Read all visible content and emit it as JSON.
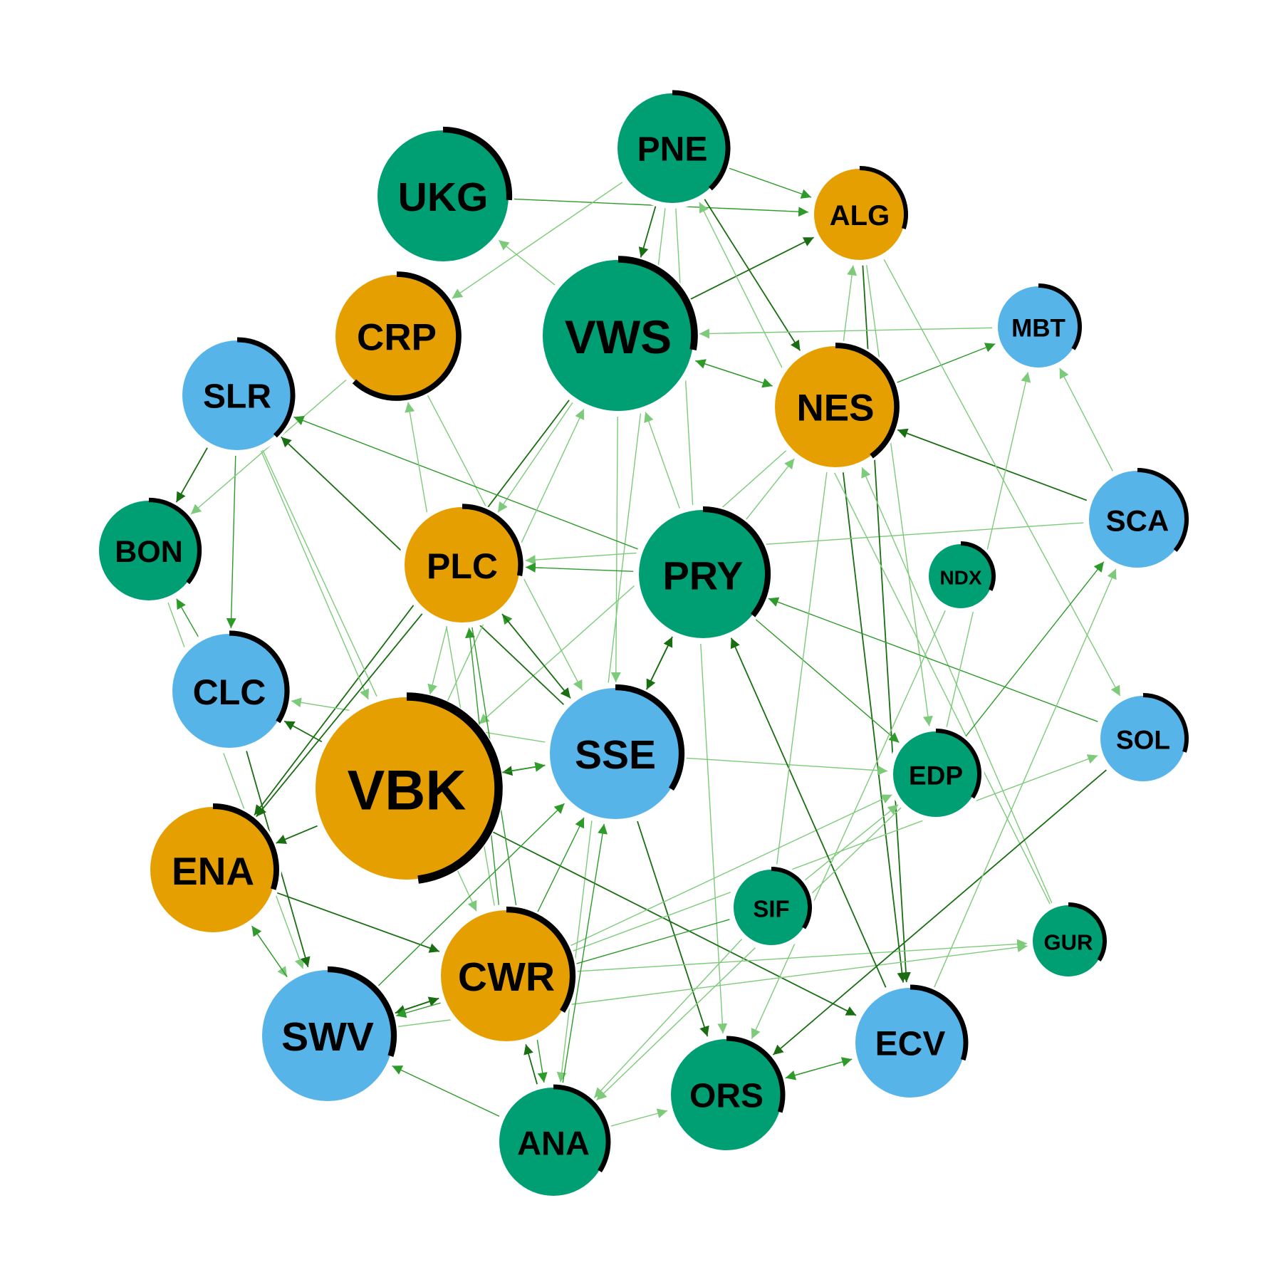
{
  "colors": {
    "orange": "#E69F00",
    "green": "#009E73",
    "blue": "#56B4E9",
    "ring": "#000000",
    "edge_dark": "#1a6e12",
    "edge_mid": "#2e9a2a",
    "edge_light": "#7dcb7a"
  },
  "nodes": [
    {
      "id": "UKG",
      "color": "green",
      "ring": 0.26
    },
    {
      "id": "PNE",
      "color": "green",
      "ring": 0.38
    },
    {
      "id": "ALG",
      "color": "orange",
      "ring": 0.3
    },
    {
      "id": "CRP",
      "color": "orange",
      "ring": 0.62
    },
    {
      "id": "VWS",
      "color": "green",
      "ring": 0.28
    },
    {
      "id": "MBT",
      "color": "blue",
      "ring": 0.34
    },
    {
      "id": "SLR",
      "color": "blue",
      "ring": 0.38
    },
    {
      "id": "NES",
      "color": "orange",
      "ring": 0.4
    },
    {
      "id": "BON",
      "color": "green",
      "ring": 0.36
    },
    {
      "id": "PLC",
      "color": "orange",
      "ring": 0.28
    },
    {
      "id": "PRY",
      "color": "green",
      "ring": 0.36
    },
    {
      "id": "SCA",
      "color": "blue",
      "ring": 0.36
    },
    {
      "id": "NDX",
      "color": "green",
      "ring": 0.32
    },
    {
      "id": "CLC",
      "color": "blue",
      "ring": 0.34
    },
    {
      "id": "VBK",
      "color": "orange",
      "ring": 0.48
    },
    {
      "id": "SSE",
      "color": "blue",
      "ring": 0.34
    },
    {
      "id": "EDP",
      "color": "green",
      "ring": 0.34
    },
    {
      "id": "SOL",
      "color": "blue",
      "ring": 0.3
    },
    {
      "id": "ENA",
      "color": "orange",
      "ring": 0.3
    },
    {
      "id": "SIF",
      "color": "green",
      "ring": 0.34
    },
    {
      "id": "CWR",
      "color": "orange",
      "ring": 0.34
    },
    {
      "id": "GUR",
      "color": "green",
      "ring": 0.34
    },
    {
      "id": "SWV",
      "color": "blue",
      "ring": 0.3
    },
    {
      "id": "ECV",
      "color": "blue",
      "ring": 0.3
    },
    {
      "id": "ORS",
      "color": "green",
      "ring": 0.3
    },
    {
      "id": "ANA",
      "color": "green",
      "ring": 0.34
    }
  ],
  "edges": [
    {
      "from": "UKG",
      "to": "ALG",
      "shade": "mid"
    },
    {
      "from": "PNE",
      "to": "VWS",
      "shade": "dark"
    },
    {
      "from": "PNE",
      "to": "ALG",
      "shade": "mid"
    },
    {
      "from": "PNE",
      "to": "CRP",
      "shade": "light"
    },
    {
      "from": "PNE",
      "to": "NES",
      "shade": "dark"
    },
    {
      "from": "PNE",
      "to": "ORS",
      "shade": "light"
    },
    {
      "from": "PNE",
      "to": "ANA",
      "shade": "light"
    },
    {
      "from": "VWS",
      "to": "ALG",
      "shade": "dark"
    },
    {
      "from": "NES",
      "to": "VWS",
      "shade": "mid"
    },
    {
      "from": "VWS",
      "to": "NES",
      "shade": "mid"
    },
    {
      "from": "VWS",
      "to": "PLC",
      "shade": "light"
    },
    {
      "from": "VWS",
      "to": "SSE",
      "shade": "light"
    },
    {
      "from": "VWS",
      "to": "UKG",
      "shade": "light"
    },
    {
      "from": "VWS",
      "to": "ENA",
      "shade": "dark"
    },
    {
      "from": "NES",
      "to": "MBT",
      "shade": "mid"
    },
    {
      "from": "NES",
      "to": "ECV",
      "shade": "dark"
    },
    {
      "from": "NES",
      "to": "VBK",
      "shade": "light"
    },
    {
      "from": "SCA",
      "to": "NES",
      "shade": "dark"
    },
    {
      "from": "SCA",
      "to": "MBT",
      "shade": "light"
    },
    {
      "from": "SCA",
      "to": "PLC",
      "shade": "light"
    },
    {
      "from": "ALG",
      "to": "EDP",
      "shade": "light"
    },
    {
      "from": "ALG",
      "to": "SOL",
      "shade": "light"
    },
    {
      "from": "ALG",
      "to": "ECV",
      "shade": "dark"
    },
    {
      "from": "MBT",
      "to": "VWS",
      "shade": "light"
    },
    {
      "from": "GUR",
      "to": "PNE",
      "shade": "light"
    },
    {
      "from": "GUR",
      "to": "NES",
      "shade": "light"
    },
    {
      "from": "SLR",
      "to": "BON",
      "shade": "dark"
    },
    {
      "from": "SLR",
      "to": "CLC",
      "shade": "mid"
    },
    {
      "from": "SLR",
      "to": "CWR",
      "shade": "light"
    },
    {
      "from": "SLR",
      "to": "VBK",
      "shade": "light"
    },
    {
      "from": "CRP",
      "to": "BON",
      "shade": "light"
    },
    {
      "from": "CRP",
      "to": "SSE",
      "shade": "light"
    },
    {
      "from": "PRY",
      "to": "SLR",
      "shade": "mid"
    },
    {
      "from": "PRY",
      "to": "PLC",
      "shade": "mid"
    },
    {
      "from": "PRY",
      "to": "EDP",
      "shade": "mid"
    },
    {
      "from": "PRY",
      "to": "NES",
      "shade": "light"
    },
    {
      "from": "PRY",
      "to": "SSE",
      "shade": "dark"
    },
    {
      "from": "PRY",
      "to": "VWS",
      "shade": "light"
    },
    {
      "from": "SSE",
      "to": "PRY",
      "shade": "dark"
    },
    {
      "from": "SSE",
      "to": "PLC",
      "shade": "mid"
    },
    {
      "from": "SSE",
      "to": "SLR",
      "shade": "dark"
    },
    {
      "from": "SSE",
      "to": "VBK",
      "shade": "dark"
    },
    {
      "from": "SSE",
      "to": "EDP",
      "shade": "light"
    },
    {
      "from": "SSE",
      "to": "ORS",
      "shade": "dark"
    },
    {
      "from": "SSE",
      "to": "CLC",
      "shade": "light"
    },
    {
      "from": "VBK",
      "to": "CLC",
      "shade": "dark"
    },
    {
      "from": "VBK",
      "to": "SSE",
      "shade": "mid"
    },
    {
      "from": "VBK",
      "to": "ENA",
      "shade": "dark"
    },
    {
      "from": "VBK",
      "to": "ECV",
      "shade": "dark"
    },
    {
      "from": "VBK",
      "to": "VWS",
      "shade": "light"
    },
    {
      "from": "BON",
      "to": "SWV",
      "shade": "light"
    },
    {
      "from": "CLC",
      "to": "BON",
      "shade": "mid"
    },
    {
      "from": "CLC",
      "to": "SWV",
      "shade": "dark"
    },
    {
      "from": "PLC",
      "to": "ENA",
      "shade": "dark"
    },
    {
      "from": "PLC",
      "to": "ANA",
      "shade": "mid"
    },
    {
      "from": "PLC",
      "to": "SSE",
      "shade": "dark"
    },
    {
      "from": "PLC",
      "to": "VBK",
      "shade": "light"
    },
    {
      "from": "ENA",
      "to": "CWR",
      "shade": "dark"
    },
    {
      "from": "ENA",
      "to": "SWV",
      "shade": "light"
    },
    {
      "from": "CWR",
      "to": "SWV",
      "shade": "dark"
    },
    {
      "from": "CWR",
      "to": "PLC",
      "shade": "mid"
    },
    {
      "from": "CWR",
      "to": "GUR",
      "shade": "light"
    },
    {
      "from": "CWR",
      "to": "EDP",
      "shade": "light"
    },
    {
      "from": "CWR",
      "to": "CRP",
      "shade": "light"
    },
    {
      "from": "CWR",
      "to": "SSE",
      "shade": "mid"
    },
    {
      "from": "CWR",
      "to": "SOL",
      "shade": "light"
    },
    {
      "from": "SWV",
      "to": "CWR",
      "shade": "dark"
    },
    {
      "from": "SWV",
      "to": "ENA",
      "shade": "mid"
    },
    {
      "from": "SWV",
      "to": "SSE",
      "shade": "mid"
    },
    {
      "from": "SWV",
      "to": "GUR",
      "shade": "light"
    },
    {
      "from": "ANA",
      "to": "SWV",
      "shade": "mid"
    },
    {
      "from": "ANA",
      "to": "CWR",
      "shade": "dark"
    },
    {
      "from": "ANA",
      "to": "SSE",
      "shade": "mid"
    },
    {
      "from": "ANA",
      "to": "ORS",
      "shade": "light"
    },
    {
      "from": "ORS",
      "to": "ECV",
      "shade": "mid"
    },
    {
      "from": "ECV",
      "to": "ORS",
      "shade": "mid"
    },
    {
      "from": "ECV",
      "to": "PRY",
      "shade": "dark"
    },
    {
      "from": "SOL",
      "to": "ORS",
      "shade": "dark"
    },
    {
      "from": "SOL",
      "to": "PRY",
      "shade": "mid"
    },
    {
      "from": "SIF",
      "to": "ALG",
      "shade": "light"
    },
    {
      "from": "SIF",
      "to": "ANA",
      "shade": "light"
    },
    {
      "from": "SIF",
      "to": "SWV",
      "shade": "mid"
    },
    {
      "from": "SIF",
      "to": "EDP",
      "shade": "light"
    },
    {
      "from": "EDP",
      "to": "SCA",
      "shade": "mid"
    },
    {
      "from": "EDP",
      "to": "MBT",
      "shade": "light"
    },
    {
      "from": "EDP",
      "to": "ANA",
      "shade": "light"
    },
    {
      "from": "NDX",
      "to": "ORS",
      "shade": "light"
    },
    {
      "from": "ECV",
      "to": "SCA",
      "shade": "light"
    }
  ]
}
